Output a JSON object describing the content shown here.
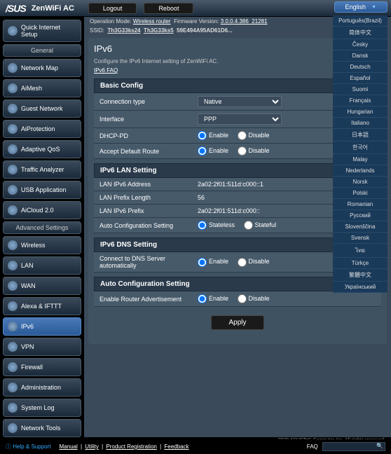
{
  "header": {
    "brand": "/SUS",
    "product": "ZenWiFi AC",
    "logout": "Logout",
    "reboot": "Reboot",
    "language": "English"
  },
  "languages": [
    "Português(Brazil)",
    "简体中文",
    "Česky",
    "Dansk",
    "Deutsch",
    "Español",
    "Suomi",
    "Français",
    "Hungarian",
    "Italiano",
    "日本語",
    "한국어",
    "Malay",
    "Nederlands",
    "Norsk",
    "Polski",
    "Romanian",
    "Русский",
    "Slovenščina",
    "Svensk",
    "ไทย",
    "Türkçe",
    "繁體中文",
    "Український"
  ],
  "info": {
    "mode_label": "Operation Mode:",
    "mode": "Wireless router",
    "fw_label": "Firmware Version:",
    "fw": "3.0.0.4.386_21281",
    "ssid_label": "SSID:",
    "ssid1": "Th3G33ks24",
    "ssid2": "Th3G33ks5",
    "mac": "59E494A95AD61D6..."
  },
  "sidebar": {
    "quick": "Quick Internet Setup",
    "general_header": "General",
    "general": [
      "Network Map",
      "AiMesh",
      "Guest Network",
      "AiProtection",
      "Adaptive QoS",
      "Traffic Analyzer",
      "USB Application",
      "AiCloud 2.0"
    ],
    "advanced_header": "Advanced Settings",
    "advanced": [
      "Wireless",
      "LAN",
      "WAN",
      "Alexa & IFTTT",
      "IPv6",
      "VPN",
      "Firewall",
      "Administration",
      "System Log",
      "Network Tools"
    ]
  },
  "panel": {
    "title": "IPv6",
    "desc": "Configure the IPv6 Internet setting of ZenWiFi AC.",
    "faq": "IPv6 FAQ"
  },
  "sections": {
    "basic": "Basic Config",
    "lan": "IPv6 LAN Setting",
    "dns": "IPv6 DNS Setting",
    "auto": "Auto Configuration Setting"
  },
  "labels": {
    "conn_type": "Connection type",
    "interface": "Interface",
    "dhcp_pd": "DHCP-PD",
    "accept_route": "Accept Default Route",
    "lan_addr": "LAN IPv6 Address",
    "lan_prefix_len": "LAN Prefix Length",
    "lan_prefix": "LAN IPv6 Prefix",
    "auto_conf": "Auto Configuration Setting",
    "dns_auto": "Connect to DNS Server automatically",
    "router_adv": "Enable Router Advertisement",
    "enable": "Enable",
    "disable": "Disable",
    "stateless": "Stateless",
    "stateful": "Stateful"
  },
  "values": {
    "conn_type": "Native",
    "interface": "PPP",
    "lan_addr": "2a02:2f01:511d:c000::1",
    "lan_prefix_len": "56",
    "lan_prefix": "2a02:2f01:511d:c000::"
  },
  "apply": "Apply",
  "footer": {
    "help": "Help & Support",
    "manual": "Manual",
    "utility": "Utility",
    "reg": "Product Registration",
    "feedback": "Feedback",
    "faq": "FAQ",
    "copyright": "2020 ASUSTeK Computer Inc. All rights reserved."
  }
}
